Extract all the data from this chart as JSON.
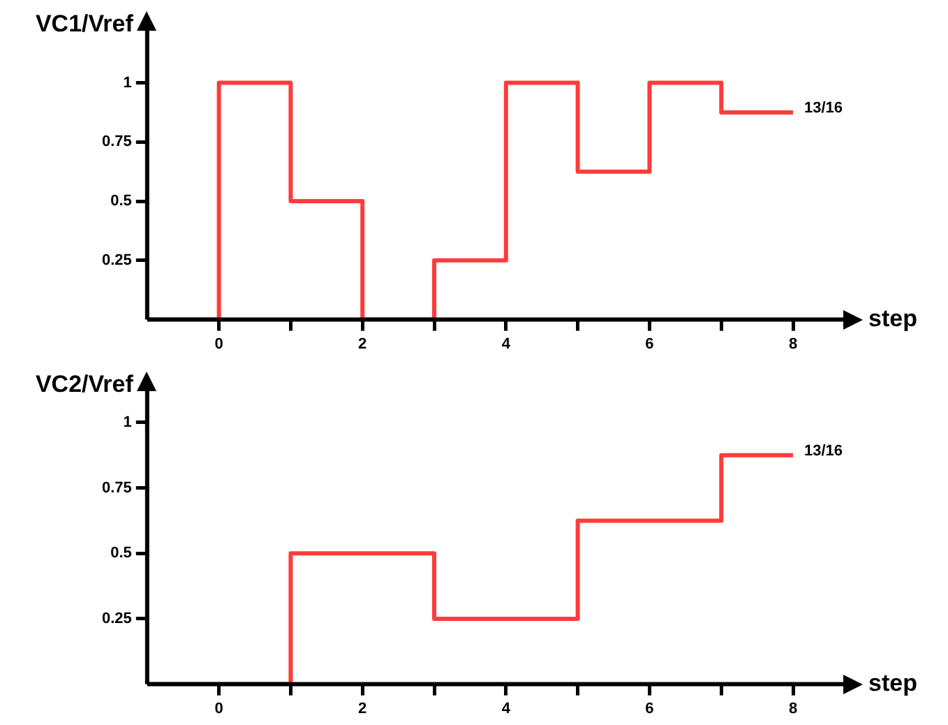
{
  "chart_data": [
    {
      "type": "step",
      "ylabel": "VC1/Vref",
      "xlabel": "step",
      "x": [
        -1,
        0,
        1,
        2,
        3,
        4,
        5,
        6,
        7,
        8
      ],
      "values": [
        0,
        1,
        0.5,
        0,
        0.25,
        1,
        0.625,
        1,
        0.875,
        0.875
      ],
      "color": "#ff3b3b",
      "xlim": [
        -1,
        8.7
      ],
      "xticks": [
        0,
        {
          "value": 1,
          "label": null
        },
        2,
        {
          "value": 3,
          "label": null
        },
        4,
        {
          "value": 5,
          "label": null
        },
        6,
        {
          "value": 7,
          "label": null
        },
        8
      ],
      "ylim": [
        0,
        1.22
      ],
      "yticks": [
        0.25,
        0.5,
        0.75,
        1
      ],
      "annotations": [
        {
          "text": "13/16",
          "x": 8,
          "y": 0.875
        }
      ],
      "grid": false,
      "legend": false
    },
    {
      "type": "step",
      "ylabel": "VC2/Vref",
      "xlabel": "step",
      "x": [
        -1,
        0,
        1,
        2,
        3,
        4,
        5,
        6,
        7,
        8
      ],
      "values": [
        0,
        0,
        0.5,
        0.5,
        0.25,
        0.25,
        0.625,
        0.625,
        0.875,
        0.875
      ],
      "color": "#ff3b3b",
      "xlim": [
        -1,
        8.7
      ],
      "xticks": [
        0,
        {
          "value": 1,
          "label": null
        },
        2,
        {
          "value": 3,
          "label": null
        },
        4,
        {
          "value": 5,
          "label": null
        },
        6,
        {
          "value": 7,
          "label": null
        },
        8
      ],
      "ylim": [
        0,
        1.12
      ],
      "yticks": [
        0.25,
        0.5,
        0.75,
        1
      ],
      "annotations": [
        {
          "text": "13/16",
          "x": 8,
          "y": 0.875
        }
      ],
      "grid": false,
      "legend": false
    }
  ]
}
